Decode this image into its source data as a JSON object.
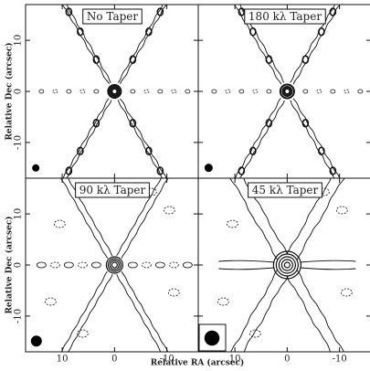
{
  "figure": {
    "panels": [
      {
        "title": "No Taper"
      },
      {
        "title": "180 kλ Taper"
      },
      {
        "title": "90 kλ Taper"
      },
      {
        "title": "45 kλ Taper"
      }
    ],
    "xlabel": "Relative RA (arcsec)",
    "ylabel": "Relative Dec (arcsec)",
    "xlim": [
      17,
      -16
    ],
    "ylim": [
      -17,
      17
    ],
    "xticks": [
      10,
      0,
      -10
    ],
    "yticks": [
      10,
      0,
      -10
    ]
  }
}
